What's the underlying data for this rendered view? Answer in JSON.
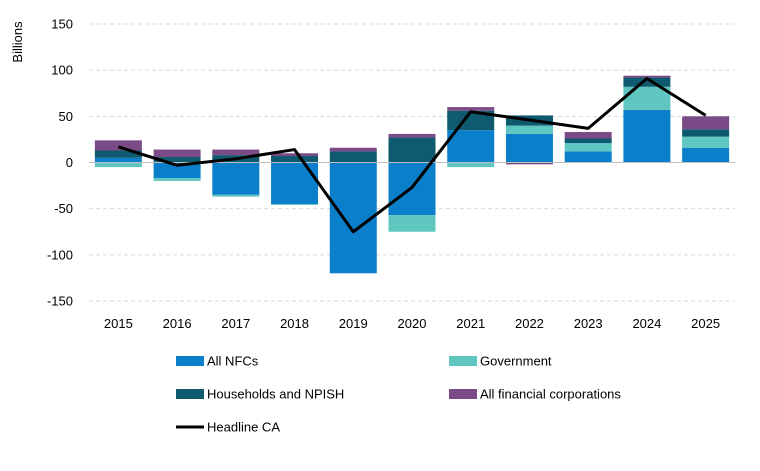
{
  "chart_data": {
    "type": "bar",
    "stacked": true,
    "ylabel": "Billions",
    "ylim": [
      -150,
      150
    ],
    "yticks": [
      -150,
      -100,
      -50,
      0,
      50,
      100,
      150
    ],
    "grid": true,
    "legend_position": "bottom",
    "categories": [
      "2015",
      "2016",
      "2017",
      "2018",
      "2019",
      "2020",
      "2021",
      "2022",
      "2023",
      "2024",
      "2025"
    ],
    "series": [
      {
        "name": "All NFCs",
        "color": "#0b7fca",
        "values": [
          5,
          -17,
          -35,
          -45,
          -120,
          -57,
          35,
          31,
          12,
          57,
          16
        ]
      },
      {
        "name": "Government",
        "color": "#5fc6c0",
        "values": [
          -5,
          -3,
          -2,
          -1,
          0,
          -18,
          -5,
          9,
          9,
          25,
          12
        ]
      },
      {
        "name": "Households and NPISH",
        "color": "#0f5a6e",
        "values": [
          8,
          6,
          8,
          7,
          12,
          27,
          21,
          11,
          5,
          10,
          8
        ]
      },
      {
        "name": "All financial corporations",
        "color": "#7a4b86",
        "values": [
          11,
          8,
          6,
          3,
          4,
          4,
          4,
          -2,
          7,
          2,
          14
        ]
      }
    ],
    "line": {
      "name": "Headline CA",
      "color": "#000000",
      "values": [
        17,
        -3,
        4,
        14,
        -75,
        -27,
        55,
        46,
        37,
        91,
        51
      ]
    }
  }
}
